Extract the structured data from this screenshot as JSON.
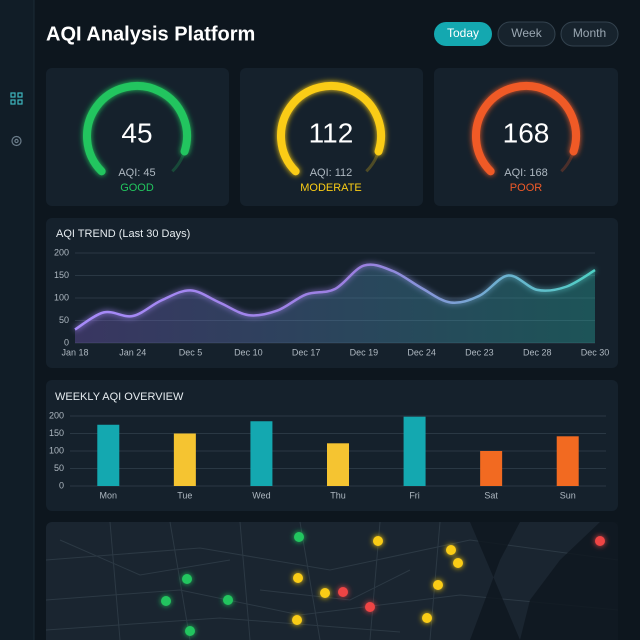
{
  "header": {
    "title": "AQI Analysis Platform",
    "tabs": [
      "Today",
      "Week",
      "Month"
    ],
    "active_tab": 0
  },
  "gauges": [
    {
      "value": 45,
      "caption": "AQI: 45",
      "status": "GOOD",
      "color": "#22c55e"
    },
    {
      "value": 112,
      "caption": "AQI: 112",
      "status": "MODERATE",
      "color": "#facc15"
    },
    {
      "value": 168,
      "caption": "AQI: 168",
      "status": "POOR",
      "color": "#f05a28"
    }
  ],
  "chart_data": [
    {
      "type": "line",
      "title": "AQI TREND (Last 30 Days)",
      "categories": [
        "Jan 18",
        null,
        "Jan 24",
        null,
        "Dec 5",
        null,
        "Dec 10",
        null,
        "Dec 17",
        null,
        "Dec 19",
        null,
        "Dec 24",
        null,
        "Dec 23",
        null,
        "Dec 28",
        null,
        "Dec 30"
      ],
      "values": [
        30,
        68,
        60,
        95,
        117,
        90,
        62,
        72,
        108,
        120,
        172,
        160,
        122,
        90,
        105,
        150,
        118,
        125,
        162
      ],
      "color": "#a78bfa",
      "ylim": [
        0,
        200
      ],
      "yticks": [
        0,
        50,
        100,
        150,
        200
      ],
      "grid": true
    },
    {
      "type": "bar",
      "title": "WEEKLY AQI OVERVIEW",
      "categories": [
        "Mon",
        "Tue",
        "Wed",
        "Thu",
        "Fri",
        "Sat",
        "Sun"
      ],
      "values": [
        175,
        150,
        185,
        122,
        198,
        100,
        142
      ],
      "colors": [
        "#14a8b0",
        "#f5c431",
        "#14a8b0",
        "#f5c431",
        "#14a8b0",
        "#f26a21",
        "#f26a21"
      ],
      "ylim": [
        0,
        200
      ],
      "yticks": [
        0,
        50,
        100,
        150,
        200
      ],
      "grid": true
    }
  ]
}
